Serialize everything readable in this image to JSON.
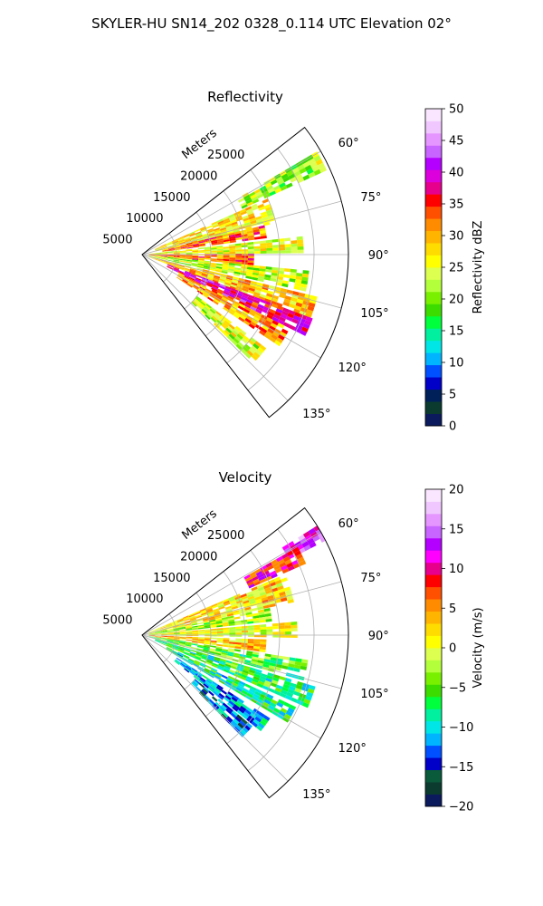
{
  "figure_title": "SKYLER-HU  SN14_202  0328_0.114 UTC Elevation 02°",
  "chart_data": [
    {
      "type": "heatmap",
      "subtype": "polar-sector",
      "title": "Reflectivity",
      "range_label": "Meters",
      "range_ticks": [
        5000,
        10000,
        15000,
        20000,
        25000
      ],
      "range_tick_labels": [
        "5000",
        "10000",
        "15000",
        "20000",
        "25000"
      ],
      "range_max": 30000,
      "azimuth_range_deg": [
        52,
        142
      ],
      "azimuth_ticks": [
        60,
        75,
        90,
        105,
        120,
        135
      ],
      "azimuth_tick_labels": [
        "60°",
        "75°",
        "90°",
        "105°",
        "120°",
        "135°"
      ],
      "grid": true,
      "colorbar": {
        "label": "Reflectivity dBZ",
        "min": 0,
        "max": 50,
        "ticks": [
          0,
          5,
          10,
          15,
          20,
          25,
          30,
          35,
          40,
          45,
          50
        ],
        "tick_labels": [
          "0",
          "5",
          "10",
          "15",
          "20",
          "25",
          "30",
          "35",
          "40",
          "45",
          "50"
        ],
        "colors": [
          "#0a1a5c",
          "#0b3b2e",
          "#00205a",
          "#0000c8",
          "#0050ff",
          "#00b4ff",
          "#00e6e6",
          "#00f0a0",
          "#00ff3c",
          "#3cdc00",
          "#78f000",
          "#b4ff3c",
          "#dcff50",
          "#ffff00",
          "#ffdc00",
          "#ffb400",
          "#ff8c00",
          "#ff5000",
          "#ff0000",
          "#e6008c",
          "#dc00dc",
          "#b400ff",
          "#c864ff",
          "#e696ff",
          "#f0c8ff",
          "#fae6ff"
        ]
      },
      "echo_bands": [
        {
          "az_center": 62,
          "az_width": 5,
          "r_start": 16000,
          "r_end": 29000,
          "value": 22
        },
        {
          "az_center": 71,
          "az_width": 10,
          "r_start": 2000,
          "r_end": 20000,
          "value": 27
        },
        {
          "az_center": 79,
          "az_width": 5,
          "r_start": 3000,
          "r_end": 18000,
          "value": 32
        },
        {
          "az_center": 86,
          "az_width": 5,
          "r_start": 1000,
          "r_end": 23000,
          "value": 25
        },
        {
          "az_center": 92,
          "az_width": 5,
          "r_start": 1000,
          "r_end": 16000,
          "value": 33
        },
        {
          "az_center": 99,
          "az_width": 7,
          "r_start": 1000,
          "r_end": 24000,
          "value": 23
        },
        {
          "az_center": 107,
          "az_width": 7,
          "r_start": 1000,
          "r_end": 26000,
          "value": 29
        },
        {
          "az_center": 113,
          "az_width": 5,
          "r_start": 4000,
          "r_end": 26000,
          "value": 38
        },
        {
          "az_center": 120,
          "az_width": 7,
          "r_start": 6000,
          "r_end": 24000,
          "value": 31
        },
        {
          "az_center": 130,
          "az_width": 6,
          "r_start": 10000,
          "r_end": 22000,
          "value": 24
        }
      ]
    },
    {
      "type": "heatmap",
      "subtype": "polar-sector",
      "title": "Velocity",
      "range_label": "Meters",
      "range_ticks": [
        5000,
        10000,
        15000,
        20000,
        25000
      ],
      "range_tick_labels": [
        "5000",
        "10000",
        "15000",
        "20000",
        "25000"
      ],
      "range_max": 30000,
      "azimuth_range_deg": [
        52,
        142
      ],
      "azimuth_ticks": [
        60,
        75,
        90,
        105,
        120,
        135
      ],
      "azimuth_tick_labels": [
        "60°",
        "75°",
        "90°",
        "105°",
        "120°",
        "135°"
      ],
      "grid": true,
      "colorbar": {
        "label": "Velocity (m/s)",
        "min": -20,
        "max": 20,
        "ticks": [
          -20,
          -15,
          -10,
          -5,
          0,
          5,
          10,
          15,
          20
        ],
        "tick_labels": [
          "−20",
          "−15",
          "−10",
          "−5",
          "0",
          "5",
          "10",
          "15",
          "20"
        ],
        "colors": [
          "#0a1a5c",
          "#0b3b2e",
          "#0a5a3c",
          "#0000c8",
          "#0050ff",
          "#00b4ff",
          "#00e6e6",
          "#00f0a0",
          "#00ff3c",
          "#3cdc00",
          "#78f000",
          "#b4ff3c",
          "#dcff50",
          "#ffff00",
          "#ffdc00",
          "#ffb400",
          "#ff8c00",
          "#ff5000",
          "#ff0000",
          "#e6008c",
          "#ff00ff",
          "#b400ff",
          "#c864ff",
          "#e696ff",
          "#f0c8ff",
          "#fae6ff"
        ]
      },
      "echo_bands": [
        {
          "az_center": 60,
          "az_width": 4,
          "r_start": 24000,
          "r_end": 30000,
          "value": 14
        },
        {
          "az_center": 63,
          "az_width": 5,
          "r_start": 17000,
          "r_end": 26000,
          "value": 9
        },
        {
          "az_center": 72,
          "az_width": 10,
          "r_start": 1000,
          "r_end": 22000,
          "value": 2
        },
        {
          "az_center": 81,
          "az_width": 6,
          "r_start": 1000,
          "r_end": 19000,
          "value": -2
        },
        {
          "az_center": 88,
          "az_width": 6,
          "r_start": 1000,
          "r_end": 22000,
          "value": 0
        },
        {
          "az_center": 95,
          "az_width": 6,
          "r_start": 1000,
          "r_end": 18000,
          "value": 3
        },
        {
          "az_center": 102,
          "az_width": 7,
          "r_start": 1000,
          "r_end": 24000,
          "value": -5
        },
        {
          "az_center": 110,
          "az_width": 7,
          "r_start": 2000,
          "r_end": 26000,
          "value": -7
        },
        {
          "az_center": 118,
          "az_width": 6,
          "r_start": 4000,
          "r_end": 24000,
          "value": -8
        },
        {
          "az_center": 126,
          "az_width": 6,
          "r_start": 6000,
          "r_end": 22000,
          "value": -11
        },
        {
          "az_center": 132,
          "az_width": 5,
          "r_start": 10000,
          "r_end": 20000,
          "value": -13
        }
      ]
    }
  ]
}
